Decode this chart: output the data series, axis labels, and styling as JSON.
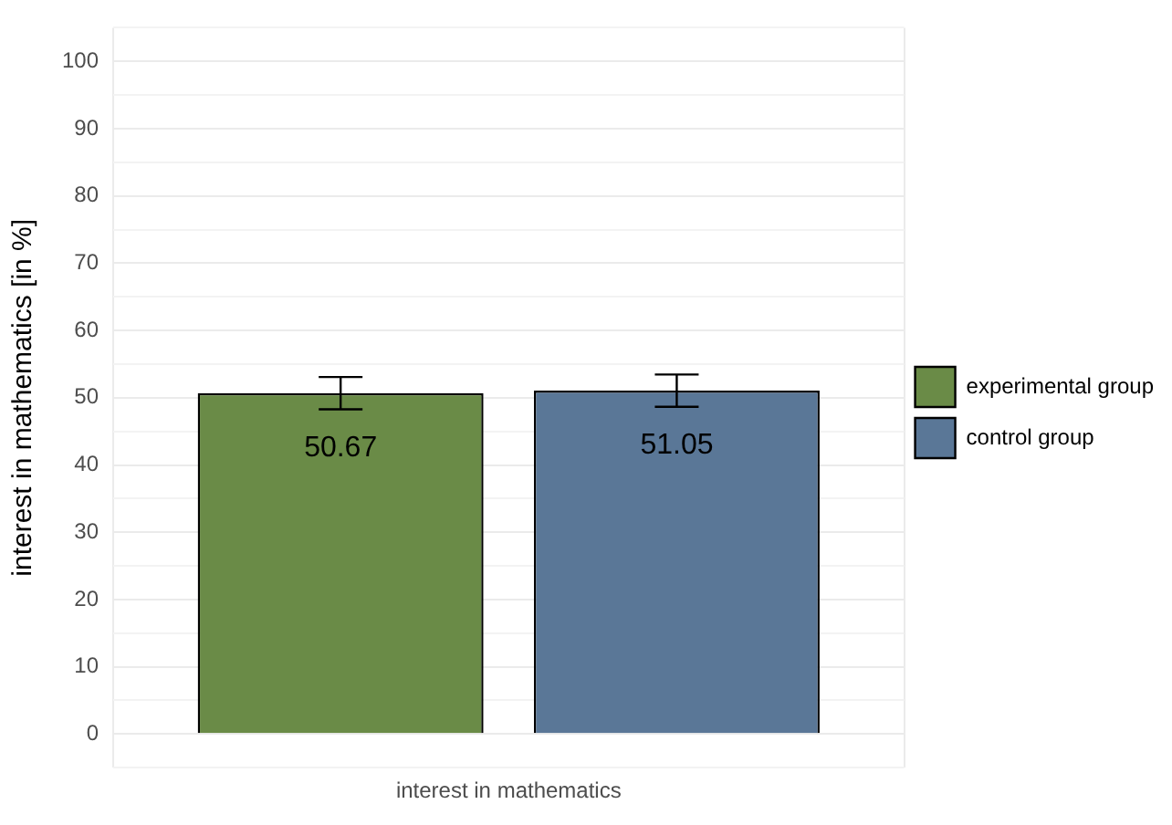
{
  "chart_data": {
    "type": "bar",
    "ylabel": "interest in mathematics [in %]",
    "categories": [
      "interest in mathematics"
    ],
    "series": [
      {
        "name": "experimental group",
        "color": "#6a8b47",
        "values": [
          50.67
        ],
        "errors": [
          2.4
        ]
      },
      {
        "name": "control group",
        "color": "#5a7797",
        "values": [
          51.05
        ],
        "errors": [
          2.4
        ]
      }
    ],
    "ylim": [
      -5,
      105
    ],
    "yticks": [
      {
        "value": -5,
        "label": null
      },
      0,
      {
        "value": 5,
        "label": null
      },
      10,
      {
        "value": 15,
        "label": null
      },
      20,
      {
        "value": 25,
        "label": null
      },
      30,
      {
        "value": 35,
        "label": null
      },
      40,
      {
        "value": 45,
        "label": null
      },
      50,
      {
        "value": 55,
        "label": null
      },
      60,
      {
        "value": 65,
        "label": null
      },
      70,
      {
        "value": 75,
        "label": null
      },
      80,
      {
        "value": 85,
        "label": null
      },
      90,
      {
        "value": 95,
        "label": null
      },
      100,
      {
        "value": 105,
        "label": null
      }
    ],
    "grid": true,
    "legend": "right",
    "data_labels": true
  }
}
